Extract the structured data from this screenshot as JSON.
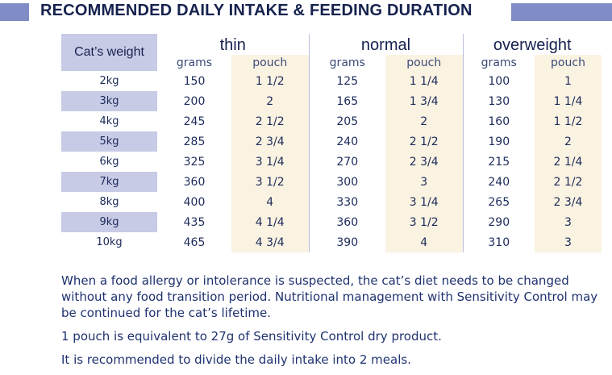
{
  "title": "RECOMMENDED DAILY INTAKE & FEEDING DURATION",
  "table": {
    "weight_header": "Cat’s weight",
    "groups": [
      "thin",
      "normal",
      "overweight"
    ],
    "grams_label": "grams",
    "pouch_label": "pouch",
    "rows": [
      {
        "weight": "2kg",
        "thin_g": "150",
        "thin_p": "1 1/2",
        "normal_g": "125",
        "normal_p": "1 1/4",
        "over_g": "100",
        "over_p": "1"
      },
      {
        "weight": "3kg",
        "thin_g": "200",
        "thin_p": "2",
        "normal_g": "165",
        "normal_p": "1 3/4",
        "over_g": "130",
        "over_p": "1 1/4"
      },
      {
        "weight": "4kg",
        "thin_g": "245",
        "thin_p": "2 1/2",
        "normal_g": "205",
        "normal_p": "2",
        "over_g": "160",
        "over_p": "1 1/2"
      },
      {
        "weight": "5kg",
        "thin_g": "285",
        "thin_p": "2 3/4",
        "normal_g": "240",
        "normal_p": "2 1/2",
        "over_g": "190",
        "over_p": "2"
      },
      {
        "weight": "6kg",
        "thin_g": "325",
        "thin_p": "3 1/4",
        "normal_g": "270",
        "normal_p": "2 3/4",
        "over_g": "215",
        "over_p": "2 1/4"
      },
      {
        "weight": "7kg",
        "thin_g": "360",
        "thin_p": "3 1/2",
        "normal_g": "300",
        "normal_p": "3",
        "over_g": "240",
        "over_p": "2 1/2"
      },
      {
        "weight": "8kg",
        "thin_g": "400",
        "thin_p": "4",
        "normal_g": "330",
        "normal_p": "3 1/4",
        "over_g": "265",
        "over_p": "2 3/4"
      },
      {
        "weight": "9kg",
        "thin_g": "435",
        "thin_p": "4 1/4",
        "normal_g": "360",
        "normal_p": "3 1/2",
        "over_g": "290",
        "over_p": "3"
      },
      {
        "weight": "10kg",
        "thin_g": "465",
        "thin_p": "4 3/4",
        "normal_g": "390",
        "normal_p": "4",
        "over_g": "310",
        "over_p": "3"
      }
    ]
  },
  "notes": [
    "When a food allergy or intolerance is suspected, the cat’s diet needs to be changed without any food transition period. Nutritional management with Sensitivity Control may be continued for the cat’s lifetime.",
    "1 pouch is equivalent to 27g of Sensitivity Control dry product.",
    "It is recommended to divide the daily intake into 2 meals."
  ],
  "colors": {
    "accent_bar": "#7f8cc6",
    "row_shade": "#c8cbe6",
    "pouch_bg": "#fbf3e2",
    "text": "#1c2a5a"
  }
}
